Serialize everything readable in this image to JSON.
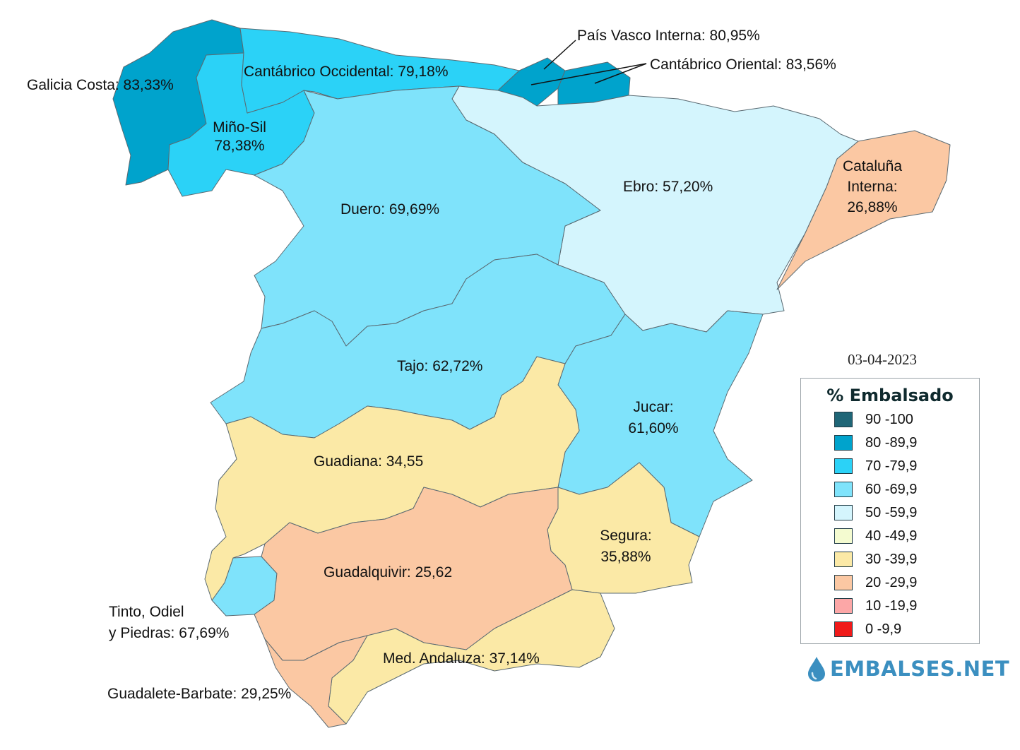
{
  "date": "03-04-2023",
  "legend": {
    "title": "% Embalsado",
    "items": [
      {
        "label": "90 -100",
        "color": "#1f6677"
      },
      {
        "label": "80 -89,9",
        "color": "#00a3cc"
      },
      {
        "label": "70 -79,9",
        "color": "#2bd2f7"
      },
      {
        "label": "60 -69,9",
        "color": "#7fe3fb"
      },
      {
        "label": "50 -59,9",
        "color": "#d4f5fd"
      },
      {
        "label": "40 -49,9",
        "color": "#f4fbd0"
      },
      {
        "label": "30 -39,9",
        "color": "#fbe9a6"
      },
      {
        "label": "20 -29,9",
        "color": "#fbc8a3"
      },
      {
        "label": "10 -19,9",
        "color": "#fca7a7"
      },
      {
        "label": "0 -9,9",
        "color": "#f01a1a"
      }
    ]
  },
  "basins": [
    {
      "id": "galicia-costa",
      "label": "Galicia Costa: 83,33%",
      "color": "#00a3cc"
    },
    {
      "id": "mino-sil",
      "label": "Miño-Sil\n78,38%",
      "color": "#2bd2f7"
    },
    {
      "id": "cantabrico-occidental",
      "label": "Cantábrico Occidental: 79,18%",
      "color": "#2bd2f7"
    },
    {
      "id": "pais-vasco-interna",
      "label": "País Vasco Interna: 80,95%",
      "color": "#00a3cc"
    },
    {
      "id": "cantabrico-oriental",
      "label": "Cantábrico Oriental: 83,56%",
      "color": "#00a3cc"
    },
    {
      "id": "duero",
      "label": "Duero: 69,69%",
      "color": "#7fe3fb"
    },
    {
      "id": "ebro",
      "label": "Ebro: 57,20%",
      "color": "#d4f5fd"
    },
    {
      "id": "cataluna-interna",
      "label": "Cataluña\nInterna:\n26,88%",
      "color": "#fbc8a3"
    },
    {
      "id": "tajo",
      "label": "Tajo: 62,72%",
      "color": "#7fe3fb"
    },
    {
      "id": "jucar",
      "label": "Jucar:\n61,60%",
      "color": "#7fe3fb"
    },
    {
      "id": "guadiana",
      "label": "Guadiana: 34,55",
      "color": "#fbe9a6"
    },
    {
      "id": "segura",
      "label": "Segura:\n35,88%",
      "color": "#fbe9a6"
    },
    {
      "id": "guadalquivir",
      "label": "Guadalquivir: 25,62",
      "color": "#fbc8a3"
    },
    {
      "id": "tinto-odiel-piedras",
      "label": "Tinto, Odiel\ny Piedras: 67,69%",
      "color": "#7fe3fb"
    },
    {
      "id": "med-andaluza",
      "label": "Med. Andaluza: 37,14%",
      "color": "#fbe9a6"
    },
    {
      "id": "guadalete-barbate",
      "label": "Guadalete-Barbate: 29,25%",
      "color": "#fbc8a3"
    }
  ],
  "logo_text": "EMBALSES.NET"
}
